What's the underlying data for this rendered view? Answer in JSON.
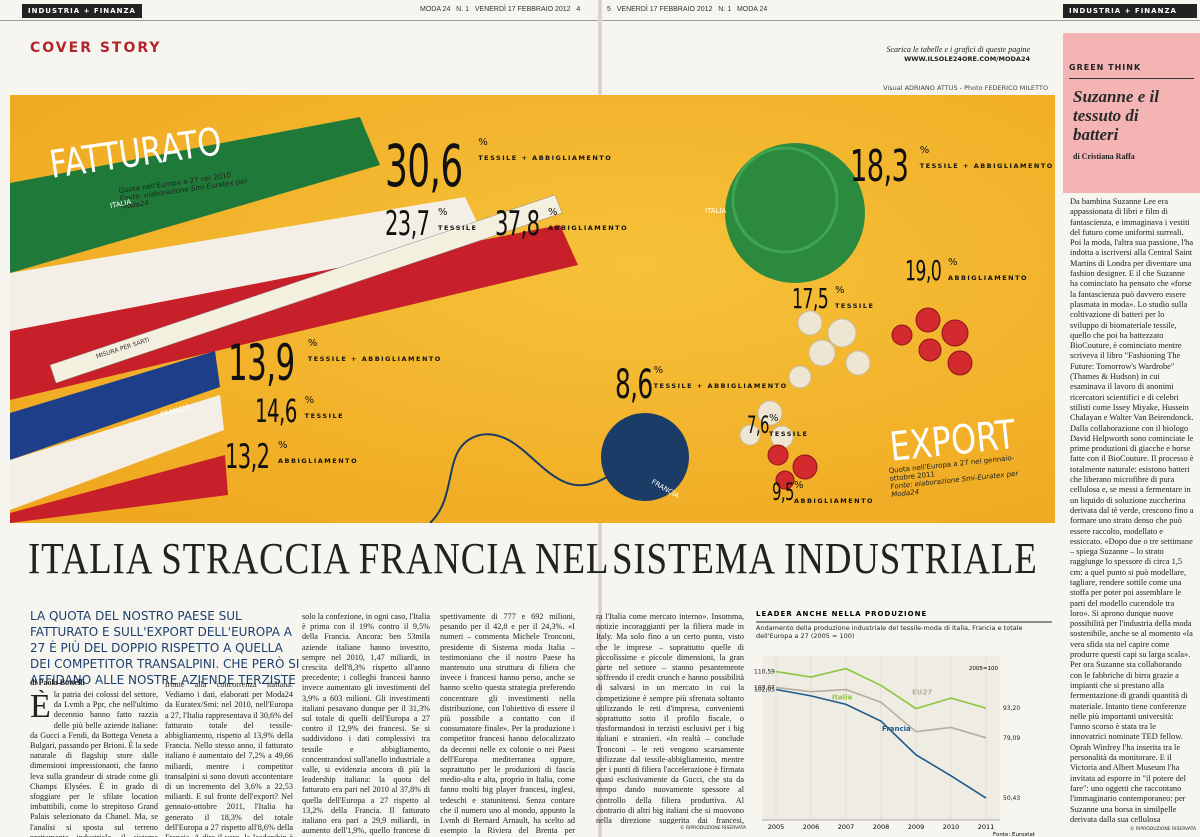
{
  "header": {
    "left_section": "INDUSTRIA + FINANZA",
    "left_folio": "MODA 24   N. 1   VENERDÌ 17 FEBBRAIO 2012   4",
    "right_folio": "5   VENERDÌ 17 FEBBRAIO 2012   N. 1   MODA 24",
    "right_section": "INDUSTRIA + FINANZA"
  },
  "kicker": "COVER STORY",
  "download": {
    "text": "Scarica le tabelle e i grafici di queste pagine",
    "url": "WWW.ILSOLE24ORE.COM/MODA24"
  },
  "credits": "Visual ADRIANO ATTUS - Photo FEDERICO MILETTO",
  "infographic": {
    "fatturato": {
      "title": "FATTURATO",
      "note": "Quota nell'Europa a 27 nel 2010",
      "source": "Fonte: elaborazione Smi-Euratex per Moda24"
    },
    "export": {
      "title": "EXPORT",
      "note": "Quota nell'Europa a 27 nel gennaio-ottobre 2011",
      "source": "Fonte: elaborazione Smi-Euratex per Moda24"
    },
    "tags": [
      "ITALIA",
      "FRANCIA",
      "MISURA PER SARTI",
      "ITALIA",
      "FRANCIA"
    ],
    "figures": [
      {
        "value": "30,6",
        "unit": "%",
        "label": "TESSILE + ABBIGLIAMENTO"
      },
      {
        "value": "23,7",
        "unit": "%",
        "label": "TESSILE"
      },
      {
        "value": "37,8",
        "unit": "%",
        "label": "ABBIGLIAMENTO"
      },
      {
        "value": "13,9",
        "unit": "%",
        "label": "TESSILE + ABBIGLIAMENTO"
      },
      {
        "value": "14,6",
        "unit": "%",
        "label": "TESSILE"
      },
      {
        "value": "13,2",
        "unit": "%",
        "label": "ABBIGLIAMENTO"
      },
      {
        "value": "18,3",
        "unit": "%",
        "label": "TESSILE + ABBIGLIAMENTO"
      },
      {
        "value": "17,5",
        "unit": "%",
        "label": "TESSILE"
      },
      {
        "value": "19,0",
        "unit": "%",
        "label": "ABBIGLIAMENTO"
      },
      {
        "value": "8,6",
        "unit": "%",
        "label": "TESSILE + ABBIGLIAMENTO"
      },
      {
        "value": "7,6",
        "unit": "%",
        "label": "TESSILE"
      },
      {
        "value": "9,5",
        "unit": "%",
        "label": "ABBIGLIAMENTO"
      }
    ]
  },
  "headline": {
    "left": "ITALIA STRACCIA FRANCIA NEL",
    "right": "SISTEMA INDUSTRIALE"
  },
  "subhead": "LA QUOTA DEL NOSTRO PAESE SUL FATTURATO E SULL'EXPORT DELL'EUROPA A 27 È PIÙ DEL DOPPIO RISPETTO A QUELLA DEI COMPETITOR TRANSALPINI. CHE PERÒ SI AFFIDANO ALLE NOSTRE AZIENDE TERZISTE",
  "byline": "di Paola Bottelli",
  "article": {
    "drop_cap": "È",
    "columns": [
      "la patria dei colossi del settore, da Lvmh a Ppr, che nell'ultimo decennio hanno fatto razzia delle più belle aziende italiane: da Gucci a Fendi, da Bottega Veneta a Bulgari, passando per Brioni. È la sede naturale di flagship store dalle dimensioni impressionanti, che fanno leva sulla grandeur di strade come gli Champs Elysées. È in grado di sfoggiare per le sfilate location imbattibili, come lo strepitoso Grand Palais selezionato da Chanel. Ma, se l'analisi si sposta sul terreno prettamente industriale, il sistema moda della Francia perde tutto il suo fascino. E soccombe di",
      "fronte alla concorrenza italiana. Vediamo i dati, elaborati per Moda24 da Euratex/Smi: nel 2010, nell'Europa a 27, l'Italia rappresentava il 30,6% del fatturato totale del tessile-abbigliamento, rispetto al 13,9% della Francia. Nello stesso anno, il fatturato italiano è aumentato del 7,2% a 49,66 miliardi, mentre i competitor transalpini si sono dovuti accontentare di un incremento del 3,6% a 22,53 miliardi. E sul fronte dell'export? Nel gennaio-ottobre 2011, l'Italia ha generato il 18,3% del totale dell'Europa a 27 rispetto all'8,6% della Francia. A dire il vero, la leadership è della Germania con il 20% ma bisogna precisare che il business dei tedeschi, a parte il successo di Hugo Boss, è maggiormente focalizzato in segmenti inferiori rispetto a quelli italiani. Se si rileva",
      "solo la confezione, in ogni caso, l'Italia è prima con il 19% contro il 9,5% della Francia. Ancora: ben 53mila aziende italiane hanno investito, sempre nel 2010, 1,47 miliardi, in crescita dell'8,3% rispetto all'anno precedente; i colleghi francesi hanno invece aumentato gli investimenti del 3,9% a 603 milioni. Gli investimenti italiani pesavano dunque per il 31,3% sul totale di quelli dell'Europa a 27 contro il 12,9% dei francesi. Se si suddividono i dati complessivi tra tessile e abbigliamento, concentrandosi sull'anello industriale a valle, si evidenzia ancora di più la leadership italiana: la quota del fatturato era pari nel 2010 al 37,8% di quella dell'Europa a 27 rispetto al 13,2% della Francia. Il fatturato italiano era pari a 29,9 miliardi, in aumento dell'1,9%, quello francese di 10,4 miliardi (+2,4%). Sorprende forse un po' che gli investimenti delle aziende dell'abbigliamento italiano siano solo di poco superiori a quelle delle imprese tessili, visto che l'anello più a monte della filiera nazionale è stato dato per \"disperso\" da troppi in modo forse affrettato: nel 2010, comunque, i due dati sono stati ri-",
      "spettivamente di 777 e 692 milioni, pesando per il 42,8 e per il 24,3%. «I numeri – commenta Michele Tronconi, presidente di Sistema moda Italia – testimoniano che il nostro Paese ha mantenuto una struttura di filiera che invece i francesi hanno perso, anche se hanno scelto questa strategia preferendo concentrare gli investimenti nella distribuzione, con l'obiettivo di essere il più possibile a contatto con il consumatore finale». Per la produzione i competitor francesi hanno delocalizzato da decenni nelle ex colonie o nei Paesi dell'Europa mediterranea oppure, soprattutto per le produzioni di fascia medio-alta e alta, proprio in Italia, come fanno molti big player francesi, inglesi, tedeschi e statunitensi. Senza contare che il numero uno al mondo, appunto la Lvmh di Bernard Arnault, ha scelto ad esempio la Riviera del Brenta per realizzare il polo produttivo delle calzature di lusso per tutti i marchi del gruppo. «Per il tessile – aggiunge Tronconi – i francesi hanno sostituito il distretto di Lione con Como, patria della seta, interpretando positivamente la logica europea che conside-",
      "ra l'Italia come mercato interno». Insomma, notizie incoraggianti per la filiera made in Italy. Ma solo fino a un certo punto, visto che le imprese – soprattutto quelle di piccolissime e piccole dimensioni, la gran parte nel settore – stanno pesantemente soffrendo il credit crunch e hanno possibilità di salvarsi in un mercato in cui la competizione è sempre più sfrenata soltanto utilizzando le reti d'impresa, convenienti soprattutto sotto il profilo fiscale, o trasformandosi in terzisti esclusivi per i big italiani e stranieri. «In realtà – conclude Tronconi – le reti vengono scarsamente utilizzate dal tessile-abbigliamento, mentre per i punti di filiera l'accelerazione è firmata quasi esclusivamente da Gucci, che sta da tempo dando nuovamente spessore al controllo della filiera produttiva. Al contrario di altri big italiani che si muovono nella direzione suggerita dai francesi, ponendo l'accento sul contatto diretto con il consumatore piuttosto che sul luogo della produzione. Un'ottica miope a livello di sistema, perché riduce le chance di aumentare le quote di mercato»."
    ],
    "copyright": "© RIPRODUZIONE RISERVATA"
  },
  "chart": {
    "type": "line",
    "title": "LEADER ANCHE NELLA PRODUZIONE",
    "subtitle": "Andamento della produzione industriale del tessile-moda di Italia, Francia e totale dell'Europa a 27 (2005 = 100)",
    "annotation": "2005=100",
    "source": "Fonte: Eurostat",
    "x": [
      2005,
      2006,
      2007,
      2008,
      2009,
      2010,
      2011
    ],
    "xlim": [
      2004.6,
      2011.4
    ],
    "xticks": [
      2005,
      2006,
      2007,
      2008,
      2009,
      2010,
      2011
    ],
    "ylim": [
      40,
      118
    ],
    "series": [
      {
        "name": "Italia",
        "color": "#8cc63e",
        "values": [
          110.59,
          108,
          112,
          104,
          93,
          98,
          93.2
        ],
        "value_labels": [
          "110,59",
          null,
          null,
          null,
          null,
          null,
          "93,20"
        ]
      },
      {
        "name": "EU27",
        "color": "#b7ad9c",
        "values": [
          103.07,
          101,
          102,
          96,
          82,
          84,
          79.09
        ],
        "value_labels": [
          "103,07",
          null,
          null,
          null,
          null,
          null,
          "79,09"
        ]
      },
      {
        "name": "Francia",
        "color": "#1d5b8c",
        "values": [
          102.05,
          99,
          95,
          87,
          71,
          61,
          50.43
        ],
        "value_labels": [
          "102,05",
          null,
          null,
          null,
          null,
          null,
          "50,43"
        ]
      }
    ]
  },
  "sidebar": {
    "section": "GREEN THINK",
    "title": "Suzanne e il tessuto di batteri",
    "byline": "di Cristiana Raffa",
    "body": "Da bambina Suzanne Lee era appassionata di libri e film di fantascienza, e immaginava i vestiti del futuro come uniformi surreali. Poi la moda, l'altra sua passione, l'ha indotta a iscriversi alla Central Saint Martins di Londra per diventare una fashion designer. E il che Suzanne ha cominciato ha pensato che «forse la fantascienza può davvero essere plasmata in moda». Lo studio sulla coltivazione di batteri per lo sviluppo di biomateriale tessile, quello che poi ha battezzato BioCouture, è cominciato mentre scriveva il libro \"Fashioning The Future: Tomorrow's Wardrobe\" (Thames & Hudson) in cui esaminava il lavoro di anonimi ricercatori scientifici e di celebri stilisti come Issey Miyake, Hussein Chalayan e Walter Van Beirendonck. Dalla collaborazione con il biologo David Helpworth sono cominciate le prime produzioni di giacche e borse fatte con il BioCouture. Il processo è totalmente naturale: esistono batteri che liberano microfibre di pura cellulosa e, se messi a fermentare in un liquido di soluzione zuccherina derivata dal tè verde, crescono fino a formare uno strato denso che può essere raccolto, modellato e essiccato. «Dopo due o tre settimane – spiega Suzanne – lo strato raggiunge lo spessore di circa 1,5 cm: a quel punto si può modellare, tagliare, rendere sottile come una stoffa per poter poi assemblare le parti del modello cucendole tra loro». Si aprono dunque nuove possibilità per l'industria della moda sostenibile, anche se al momento «la vera sfida sta nel capire come produrre questi capi su larga scala». Per ora Suzanne sta collaborando con le fabbriche di birra grazie a impianti che si prestano alla fermentazione di grandi quantità di materiale. Intanto tiene conferenze nelle più importanti università: l'anno scorso è stata tra le innovatrici nominate TED fellow. Oprah Winfrey l'ha inserita tra le personalità da monitorare. E il Victoria and Albert Museum l'ha invitata ad esporre in \"il potere del fare\": uno oggetti che raccontano l'immaginario contemporaneo: per Suzanne una borsa in similpelle derivata dalla sua cellulosa microbica.",
    "copyright": "© RIPRODUZIONE RISERVATA"
  }
}
